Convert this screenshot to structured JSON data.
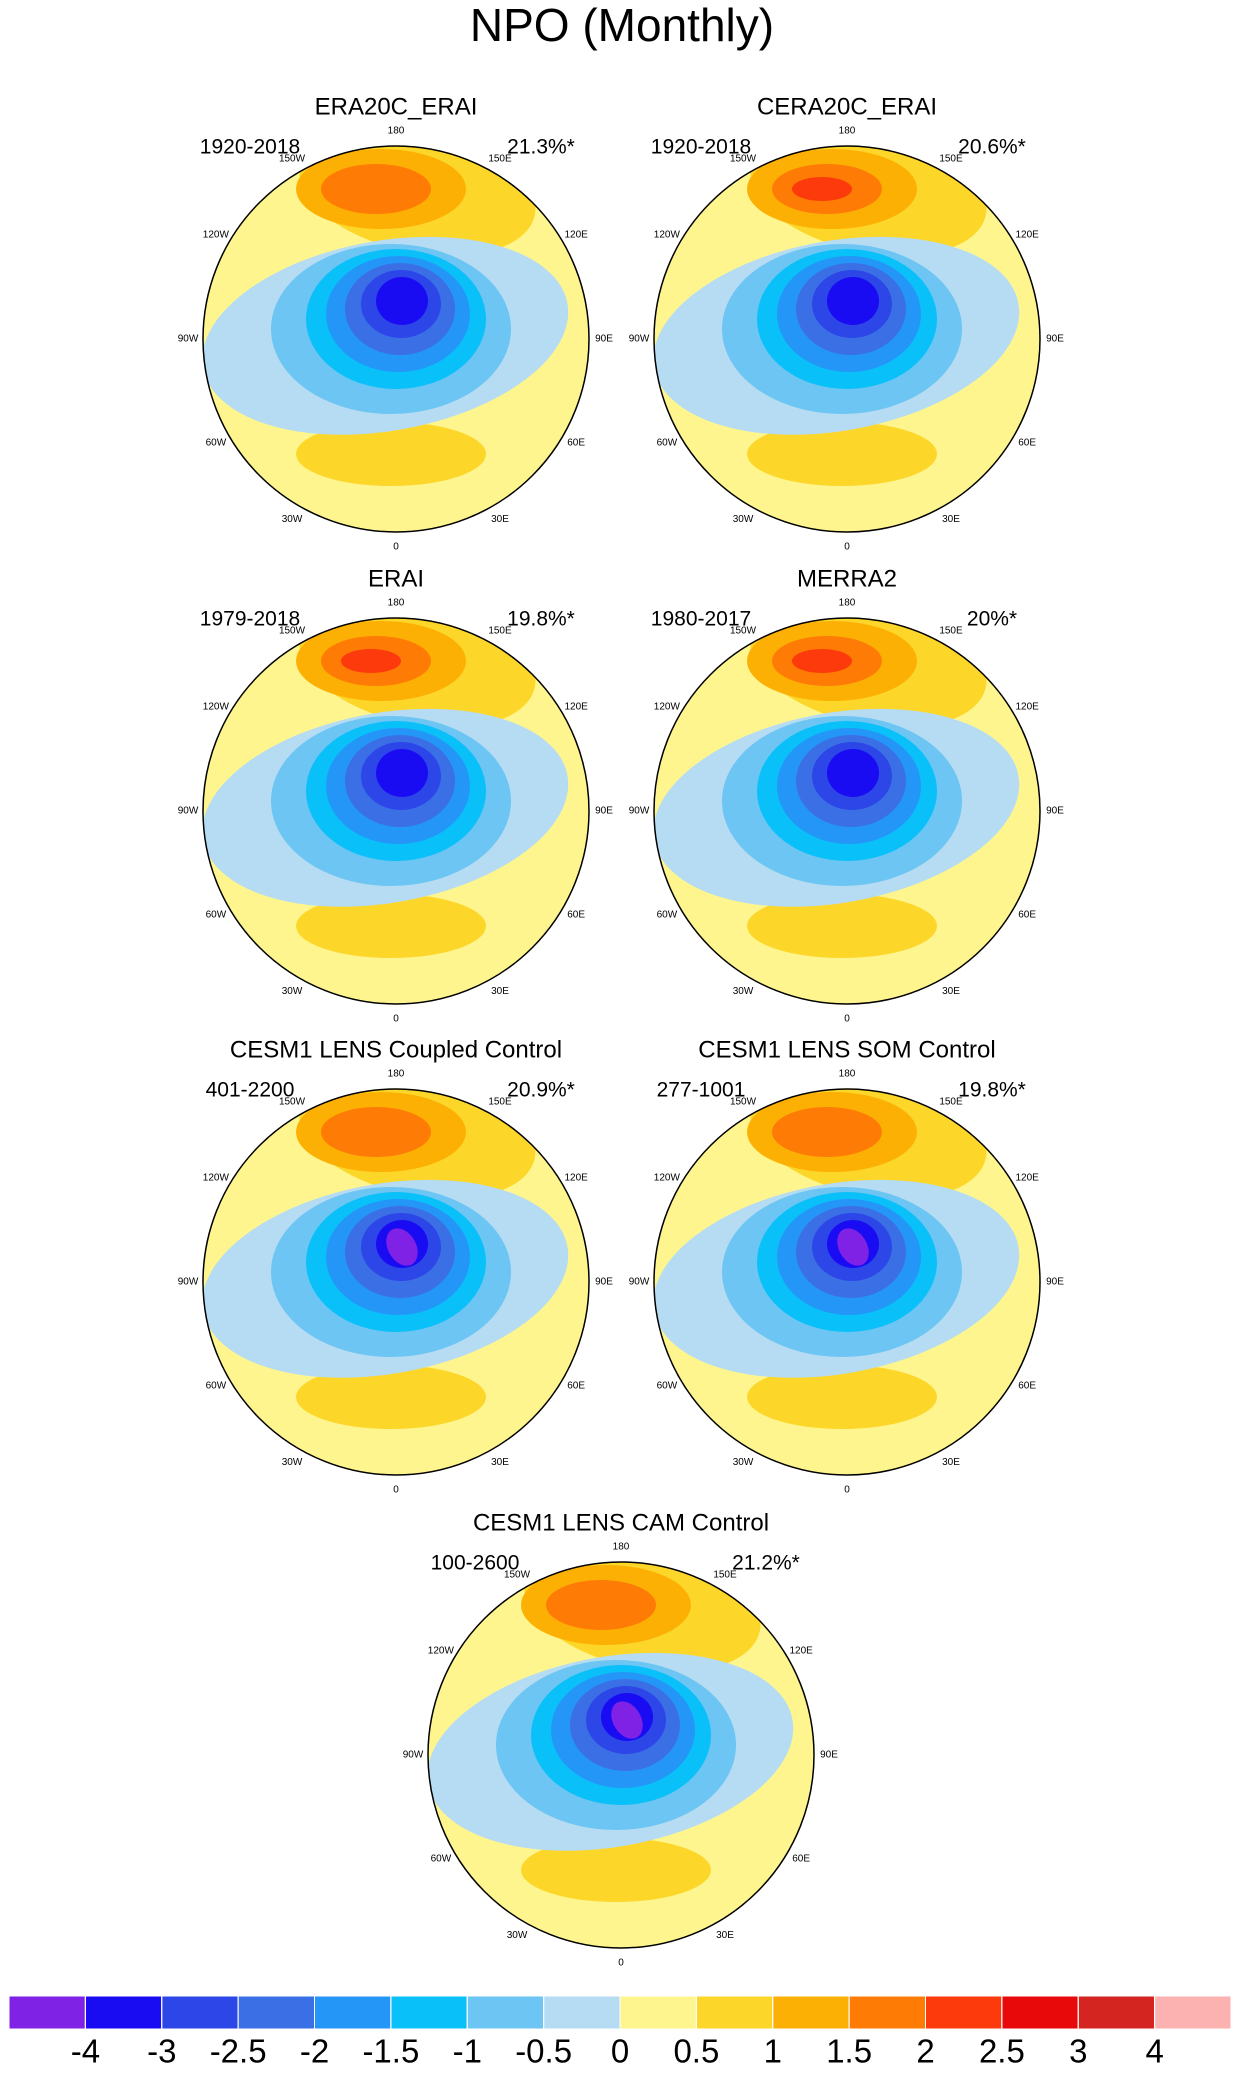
{
  "title": "NPO (Monthly)",
  "panels": [
    {
      "title": "ERA20C_ERAI",
      "period": "1920-2018",
      "variance": "21.3%*"
    },
    {
      "title": "CERA20C_ERAI",
      "period": "1920-2018",
      "variance": "20.6%*"
    },
    {
      "title": "ERAI",
      "period": "1979-2018",
      "variance": "19.8%*"
    },
    {
      "title": "MERRA2",
      "period": "1980-2017",
      "variance": "20%*"
    },
    {
      "title": "CESM1 LENS Coupled Control",
      "period": "401-2200",
      "variance": "20.9%*"
    },
    {
      "title": "CESM1 LENS SOM Control",
      "period": "277-1001",
      "variance": "19.8%*"
    },
    {
      "title": "CESM1 LENS CAM Control",
      "period": "100-2600",
      "variance": "21.2%*"
    }
  ],
  "longitude_labels": [
    "180",
    "150E",
    "120E",
    "90E",
    "60E",
    "30E",
    "0",
    "30W",
    "60W",
    "90W",
    "120W",
    "150W"
  ],
  "colorbar": {
    "levels": [
      -4,
      -3,
      -2.5,
      -2,
      -1.5,
      -1,
      -0.5,
      0,
      0.5,
      1,
      1.5,
      2,
      2.5,
      3,
      4
    ],
    "colors": [
      "#7f22e6",
      "#1a0cf2",
      "#2d46e8",
      "#3b6fe6",
      "#2496f8",
      "#0ac0f8",
      "#6dc5f3",
      "#b5dcf2",
      "#fef58e",
      "#fdd62a",
      "#fdb004",
      "#fe7c05",
      "#fd3a0b",
      "#e80a0a",
      "#d42520",
      "#fdb2b2"
    ]
  }
}
